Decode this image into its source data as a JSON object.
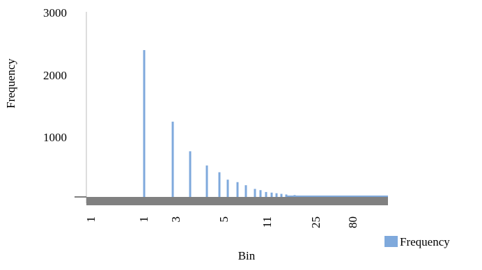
{
  "chart_data": {
    "type": "bar",
    "title": "",
    "xlabel": "Bin",
    "ylabel": "Frequency",
    "yticks": [
      "3000",
      "2000",
      "1000"
    ],
    "ylim": [
      0,
      3000
    ],
    "xtick_labels": [
      "1",
      "1",
      "3",
      "5",
      "11",
      "25",
      "80"
    ],
    "legend": {
      "label": "Frequency",
      "position": "bottom-right"
    },
    "grid": false,
    "series": [
      {
        "name": "Frequency",
        "color": "#7fa9dc",
        "values": [
          2380,
          1220,
          740,
          510,
          400,
          280,
          240,
          190,
          130,
          110,
          80,
          70,
          60,
          50,
          40,
          30,
          20,
          20,
          15,
          10
        ]
      }
    ]
  }
}
